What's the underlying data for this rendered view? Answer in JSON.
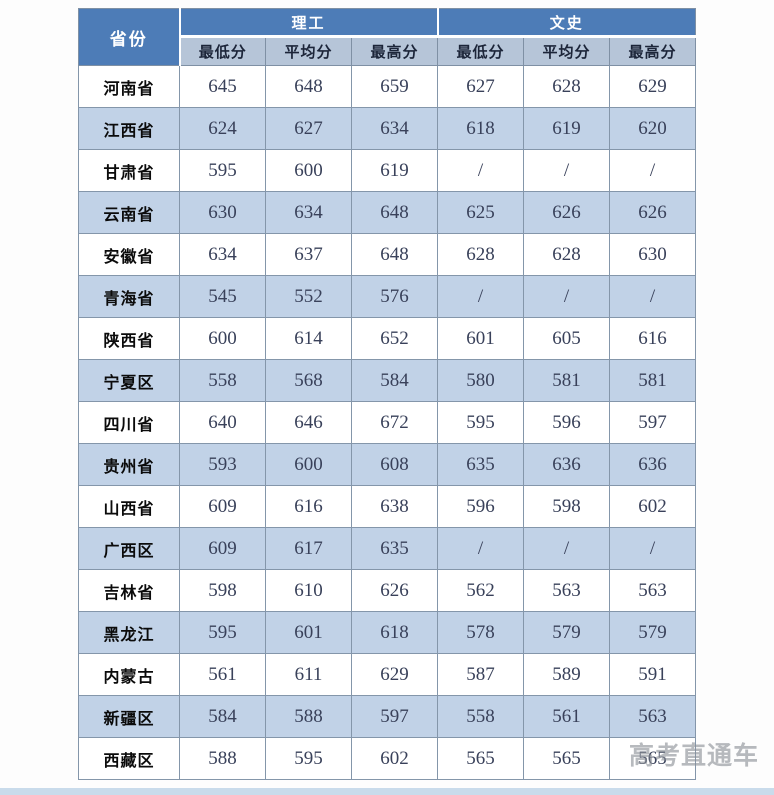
{
  "chart_data": {
    "type": "table",
    "province_header": "省份",
    "groups": [
      "理工",
      "文史"
    ],
    "sub_headers": [
      "最低分",
      "平均分",
      "最高分",
      "最低分",
      "平均分",
      "最高分"
    ],
    "columns": [
      "省份",
      "理工-最低分",
      "理工-平均分",
      "理工-最高分",
      "文史-最低分",
      "文史-平均分",
      "文史-最高分"
    ],
    "rows": [
      {
        "province": "河南省",
        "values": [
          "645",
          "648",
          "659",
          "627",
          "628",
          "629"
        ]
      },
      {
        "province": "江西省",
        "values": [
          "624",
          "627",
          "634",
          "618",
          "619",
          "620"
        ]
      },
      {
        "province": "甘肃省",
        "values": [
          "595",
          "600",
          "619",
          "/",
          "/",
          "/"
        ]
      },
      {
        "province": "云南省",
        "values": [
          "630",
          "634",
          "648",
          "625",
          "626",
          "626"
        ]
      },
      {
        "province": "安徽省",
        "values": [
          "634",
          "637",
          "648",
          "628",
          "628",
          "630"
        ]
      },
      {
        "province": "青海省",
        "values": [
          "545",
          "552",
          "576",
          "/",
          "/",
          "/"
        ]
      },
      {
        "province": "陕西省",
        "values": [
          "600",
          "614",
          "652",
          "601",
          "605",
          "616"
        ]
      },
      {
        "province": "宁夏区",
        "values": [
          "558",
          "568",
          "584",
          "580",
          "581",
          "581"
        ]
      },
      {
        "province": "四川省",
        "values": [
          "640",
          "646",
          "672",
          "595",
          "596",
          "597"
        ]
      },
      {
        "province": "贵州省",
        "values": [
          "593",
          "600",
          "608",
          "635",
          "636",
          "636"
        ]
      },
      {
        "province": "山西省",
        "values": [
          "609",
          "616",
          "638",
          "596",
          "598",
          "602"
        ]
      },
      {
        "province": "广西区",
        "values": [
          "609",
          "617",
          "635",
          "/",
          "/",
          "/"
        ]
      },
      {
        "province": "吉林省",
        "values": [
          "598",
          "610",
          "626",
          "562",
          "563",
          "563"
        ]
      },
      {
        "province": "黑龙江",
        "values": [
          "595",
          "601",
          "618",
          "578",
          "579",
          "579"
        ]
      },
      {
        "province": "内蒙古",
        "values": [
          "561",
          "611",
          "629",
          "587",
          "589",
          "591"
        ]
      },
      {
        "province": "新疆区",
        "values": [
          "584",
          "588",
          "597",
          "558",
          "561",
          "563"
        ]
      },
      {
        "province": "西藏区",
        "values": [
          "588",
          "595",
          "602",
          "565",
          "565",
          "565"
        ]
      }
    ]
  },
  "watermark": "高考直通车",
  "colors": {
    "header_blue": "#4d7cb7",
    "subheader_blue": "#b6c5d8",
    "row_blue": "#c1d2e7",
    "row_white": "#ffffff",
    "grid_line": "#8496aa",
    "header_text": "#ffffff",
    "subheader_text": "#1c2539",
    "score_text": "#39415a",
    "province_text": "#0b0b0b",
    "watermark_gray": "#8a8f96",
    "bottom_strip_blue": "#c9dbeb"
  }
}
